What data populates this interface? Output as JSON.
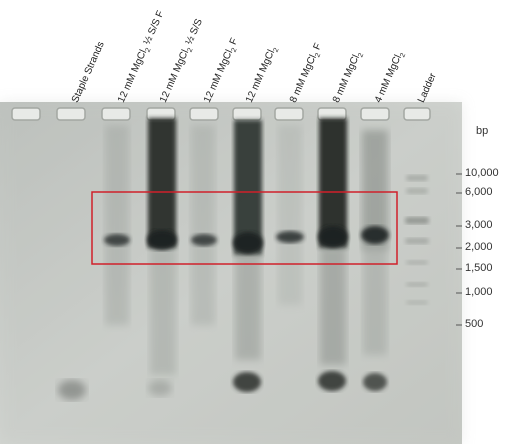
{
  "lanes": [
    {
      "base": "Staple Strands",
      "sub": "",
      "tail": ""
    },
    {
      "base": "12 mM MgCl",
      "sub": "2",
      "tail": " ½ S/S F"
    },
    {
      "base": "12 mM MgCl",
      "sub": "2",
      "tail": " ½ S/S"
    },
    {
      "base": "12 mM MgCl",
      "sub": "2",
      "tail": " F"
    },
    {
      "base": "12 mM MgCl",
      "sub": "2",
      "tail": ""
    },
    {
      "base": "8 mM MgCl",
      "sub": "2",
      "tail": " F"
    },
    {
      "base": "8 mM MgCl",
      "sub": "2",
      "tail": ""
    },
    {
      "base": "4 mM MgCl",
      "sub": "2",
      "tail": ""
    },
    {
      "base": "Ladder",
      "sub": "",
      "tail": ""
    }
  ],
  "bp_unit": "bp",
  "bp_markers": [
    "10,000",
    "6,000",
    "3,000",
    "2,000",
    "1,500",
    "1,000",
    "500"
  ],
  "colors": {
    "highlight_box": "#d0202a",
    "gel_background": "#c9ccc7",
    "band": "#1e2220"
  }
}
